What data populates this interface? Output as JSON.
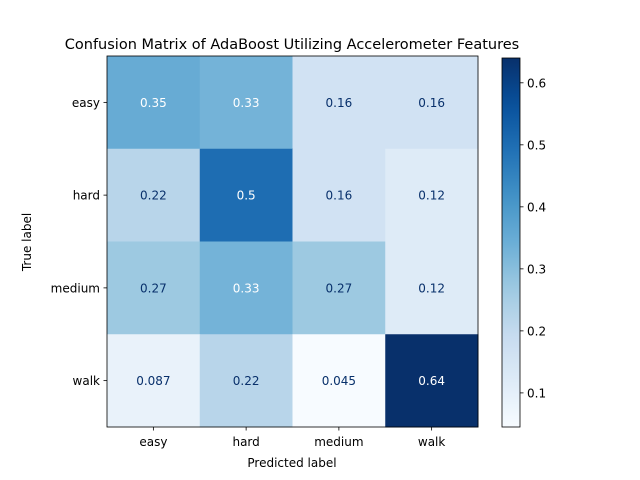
{
  "chart_data": {
    "type": "heatmap",
    "title": "Confusion Matrix of AdaBoost Utilizing Accelerometer Features",
    "xlabel": "Predicted label",
    "ylabel": "True label",
    "x_categories": [
      "easy",
      "hard",
      "medium",
      "walk"
    ],
    "y_categories": [
      "easy",
      "hard",
      "medium",
      "walk"
    ],
    "values": [
      [
        0.35,
        0.33,
        0.16,
        0.16
      ],
      [
        0.22,
        0.5,
        0.16,
        0.12
      ],
      [
        0.27,
        0.33,
        0.27,
        0.12
      ],
      [
        0.087,
        0.22,
        0.045,
        0.64
      ]
    ],
    "cell_labels": [
      [
        "0.35",
        "0.33",
        "0.16",
        "0.16"
      ],
      [
        "0.22",
        "0.5",
        "0.16",
        "0.12"
      ],
      [
        "0.27",
        "0.33",
        "0.27",
        "0.12"
      ],
      [
        "0.087",
        "0.22",
        "0.045",
        "0.64"
      ]
    ],
    "colormap": "Blues",
    "color_range": [
      0.045,
      0.64
    ],
    "colorbar_ticks": [
      0.1,
      0.2,
      0.3,
      0.4,
      0.5,
      0.6
    ],
    "colorbar_tick_labels": [
      "0.1",
      "0.2",
      "0.3",
      "0.4",
      "0.5",
      "0.6"
    ],
    "grid": false
  }
}
